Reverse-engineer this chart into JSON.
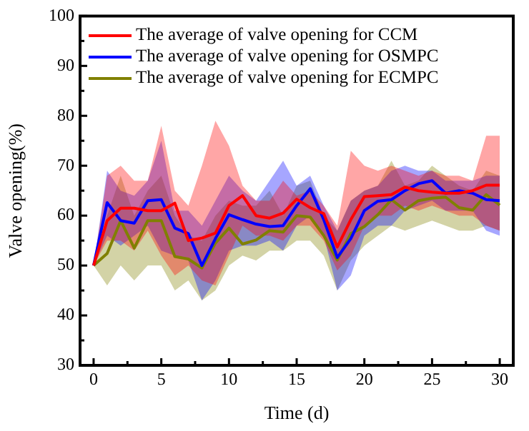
{
  "chart_data": {
    "type": "line",
    "xlabel": "Time (d)",
    "ylabel": "Valve opening(%)",
    "x": [
      0,
      1,
      2,
      3,
      4,
      5,
      6,
      7,
      8,
      9,
      10,
      11,
      12,
      13,
      14,
      15,
      16,
      17,
      18,
      19,
      20,
      21,
      22,
      23,
      24,
      25,
      26,
      27,
      28,
      29,
      30
    ],
    "xlim": [
      -1,
      31
    ],
    "ylim": [
      30,
      100
    ],
    "xticks": [
      0,
      {
        "value": 2.5,
        "label": null
      },
      5,
      {
        "value": 7.5,
        "label": null
      },
      10,
      {
        "value": 12.5,
        "label": null
      },
      15,
      {
        "value": 17.5,
        "label": null
      },
      20,
      {
        "value": 22.5,
        "label": null
      },
      25,
      {
        "value": 27.5,
        "label": null
      },
      30
    ],
    "yticks": [
      30,
      {
        "value": 35,
        "label": null
      },
      40,
      {
        "value": 45,
        "label": null
      },
      50,
      {
        "value": 55,
        "label": null
      },
      60,
      {
        "value": 65,
        "label": null
      },
      70,
      {
        "value": 75,
        "label": null
      },
      80,
      {
        "value": 85,
        "label": null
      },
      90,
      {
        "value": 95,
        "label": null
      },
      100
    ],
    "grid": false,
    "legend": "top left",
    "marker": "none",
    "line_style": "solid",
    "series": [
      {
        "name": "The average of valve opening for CCM",
        "color": "#ff0000",
        "values": [
          50,
          59,
          61.5,
          61.5,
          61,
          61,
          62.5,
          55,
          55.5,
          56.5,
          62,
          64,
          60,
          59.5,
          60.5,
          63.3,
          61.6,
          60.4,
          53.7,
          59.2,
          63.8,
          64,
          64.2,
          65.7,
          65,
          64.7,
          64.5,
          64.5,
          65,
          66.1,
          66.1
        ],
        "upper": [
          50,
          68,
          70,
          67,
          67,
          78,
          65,
          62,
          70,
          79,
          74,
          66,
          63,
          63,
          67,
          64,
          65,
          62,
          58,
          73,
          70,
          69,
          70,
          69,
          68,
          69,
          68,
          68,
          67,
          76,
          76
        ],
        "lower": [
          50,
          55,
          55,
          53,
          57,
          52,
          48,
          50,
          47,
          46,
          52,
          58,
          56,
          56,
          55,
          58,
          58,
          55,
          49,
          52,
          58,
          60,
          60,
          62,
          61,
          62,
          61,
          60,
          60,
          58,
          57
        ]
      },
      {
        "name": "The average of valve opening for OSMPC",
        "color": "#0000ff",
        "values": [
          50,
          62.6,
          59,
          58.5,
          63,
          63.2,
          57.5,
          56.4,
          50,
          55.4,
          60.2,
          59.2,
          58.3,
          57.8,
          58,
          62,
          65.4,
          59.2,
          51.6,
          55.4,
          61,
          62.9,
          63.2,
          65,
          66.4,
          67,
          64.5,
          65,
          64.5,
          63.2,
          63
        ],
        "upper": [
          50,
          69,
          65,
          64,
          67,
          75,
          61,
          61,
          58,
          63,
          68,
          65,
          63,
          67,
          71,
          66,
          68,
          62,
          57,
          63,
          65,
          66,
          69,
          70,
          69,
          69,
          67,
          67,
          67,
          68,
          68
        ],
        "lower": [
          50,
          56,
          54,
          56,
          58,
          53,
          52,
          51,
          43,
          47,
          53,
          54,
          54,
          55,
          53,
          58,
          60,
          56,
          45,
          48,
          56,
          58,
          58,
          61,
          62,
          63,
          61,
          61,
          61,
          57,
          56
        ]
      },
      {
        "name": "The average of valve opening for ECMPC",
        "color": "#808000",
        "values": [
          50,
          52.4,
          59,
          53.5,
          59,
          59,
          51.8,
          51.3,
          49.5,
          54.5,
          57.5,
          54.3,
          55.1,
          57,
          56.7,
          60,
          59.7,
          56,
          51.1,
          56.4,
          57.8,
          60.2,
          63.2,
          61.1,
          63,
          63.5,
          63.7,
          61.6,
          61.1,
          64.2,
          62.1
        ],
        "upper": [
          50,
          60,
          68,
          60,
          65,
          68,
          60,
          56,
          55,
          60,
          63,
          62,
          62,
          65,
          60,
          66,
          67,
          60,
          57,
          63,
          65,
          66,
          71,
          66,
          67,
          70,
          68,
          66,
          65,
          69,
          68
        ],
        "lower": [
          50,
          46,
          50,
          47,
          50,
          50,
          45,
          47,
          43,
          45,
          50,
          52,
          51,
          53,
          53,
          55,
          55,
          52,
          45,
          51,
          54,
          56,
          58,
          57,
          58,
          59,
          58,
          57,
          57,
          58,
          57
        ]
      }
    ]
  }
}
